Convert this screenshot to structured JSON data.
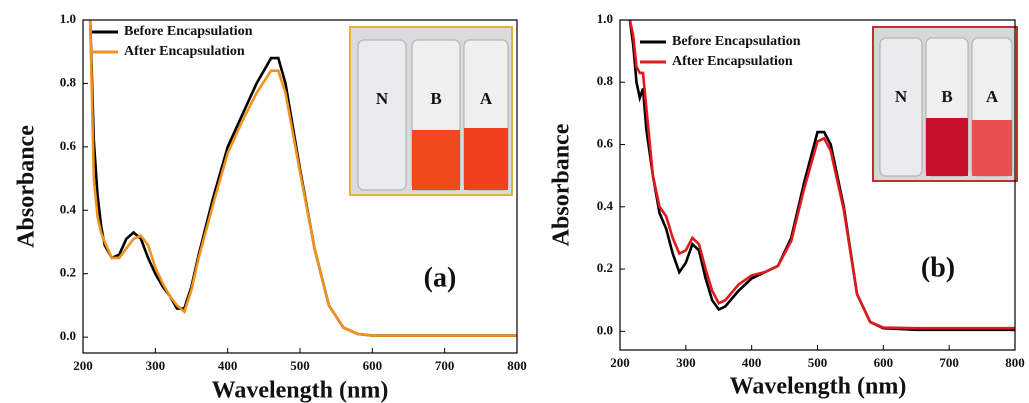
{
  "chart_data": [
    {
      "type": "line",
      "x_label": "Wavelength (nm)",
      "y_label": "Absorbance",
      "annotation": "(a)",
      "inset_labels": [
        "N",
        "B",
        "A"
      ],
      "legend": "upper left",
      "x": [
        210,
        215,
        220,
        225,
        230,
        240,
        250,
        260,
        270,
        280,
        290,
        300,
        310,
        320,
        330,
        340,
        350,
        360,
        380,
        400,
        420,
        440,
        460,
        470,
        480,
        500,
        520,
        540,
        560,
        580,
        600,
        650,
        700,
        750,
        800
      ],
      "series": [
        {
          "name": "Before Encapsulation",
          "color": "#000000",
          "values": [
            1.0,
            0.62,
            0.45,
            0.35,
            0.29,
            0.25,
            0.26,
            0.31,
            0.33,
            0.31,
            0.25,
            0.2,
            0.16,
            0.13,
            0.09,
            0.09,
            0.16,
            0.26,
            0.44,
            0.6,
            0.7,
            0.8,
            0.88,
            0.88,
            0.8,
            0.53,
            0.28,
            0.1,
            0.03,
            0.01,
            0.005,
            0.005,
            0.005,
            0.005,
            0.005
          ]
        },
        {
          "name": "After Encapsulation",
          "color": "#f0921e",
          "values": [
            1.0,
            0.5,
            0.38,
            0.33,
            0.3,
            0.25,
            0.25,
            0.28,
            0.31,
            0.32,
            0.29,
            0.22,
            0.17,
            0.13,
            0.1,
            0.08,
            0.15,
            0.25,
            0.42,
            0.58,
            0.68,
            0.77,
            0.84,
            0.84,
            0.77,
            0.52,
            0.28,
            0.1,
            0.03,
            0.01,
            0.005,
            0.005,
            0.005,
            0.005,
            0.005
          ]
        }
      ],
      "xlim": [
        200,
        800
      ],
      "xticks": [
        200,
        300,
        400,
        500,
        600,
        700,
        800
      ],
      "ylim": [
        -0.05,
        1.0
      ],
      "yticks": [
        {
          "value": 0,
          "label": "0.0"
        },
        0.2,
        0.4,
        0.6,
        0.8,
        {
          "value": 1,
          "label": "1.0"
        }
      ]
    },
    {
      "type": "line",
      "x_label": "Wavelength (nm)",
      "y_label": "Absorbance",
      "annotation": "(b)",
      "inset_labels": [
        "N",
        "B",
        "A"
      ],
      "legend": "upper left",
      "x": [
        215,
        220,
        225,
        230,
        235,
        240,
        250,
        260,
        270,
        280,
        290,
        300,
        310,
        320,
        330,
        340,
        350,
        360,
        380,
        400,
        420,
        440,
        460,
        480,
        500,
        510,
        520,
        540,
        560,
        580,
        600,
        650,
        700,
        750,
        800
      ],
      "series": [
        {
          "name": "Before Encapsulation",
          "color": "#000000",
          "values": [
            1.0,
            0.92,
            0.8,
            0.75,
            0.78,
            0.65,
            0.5,
            0.38,
            0.33,
            0.25,
            0.19,
            0.22,
            0.28,
            0.26,
            0.17,
            0.1,
            0.07,
            0.08,
            0.13,
            0.17,
            0.19,
            0.21,
            0.3,
            0.48,
            0.64,
            0.64,
            0.6,
            0.4,
            0.12,
            0.03,
            0.01,
            0.005,
            0.005,
            0.005,
            0.005
          ]
        },
        {
          "name": "After Encapsulation",
          "color": "#e0191e",
          "values": [
            1.0,
            0.95,
            0.85,
            0.83,
            0.83,
            0.72,
            0.5,
            0.4,
            0.37,
            0.3,
            0.25,
            0.26,
            0.3,
            0.28,
            0.2,
            0.13,
            0.09,
            0.1,
            0.15,
            0.18,
            0.19,
            0.21,
            0.29,
            0.46,
            0.61,
            0.62,
            0.58,
            0.39,
            0.12,
            0.03,
            0.012,
            0.01,
            0.01,
            0.01,
            0.01
          ]
        }
      ],
      "xlim": [
        200,
        800
      ],
      "xticks": [
        200,
        300,
        400,
        500,
        600,
        700,
        800
      ],
      "ylim": [
        -0.06,
        1.0
      ],
      "yticks": [
        {
          "value": 0,
          "label": "0.0"
        },
        0.2,
        0.4,
        0.6,
        0.8,
        {
          "value": 1,
          "label": "1.0"
        }
      ]
    }
  ]
}
